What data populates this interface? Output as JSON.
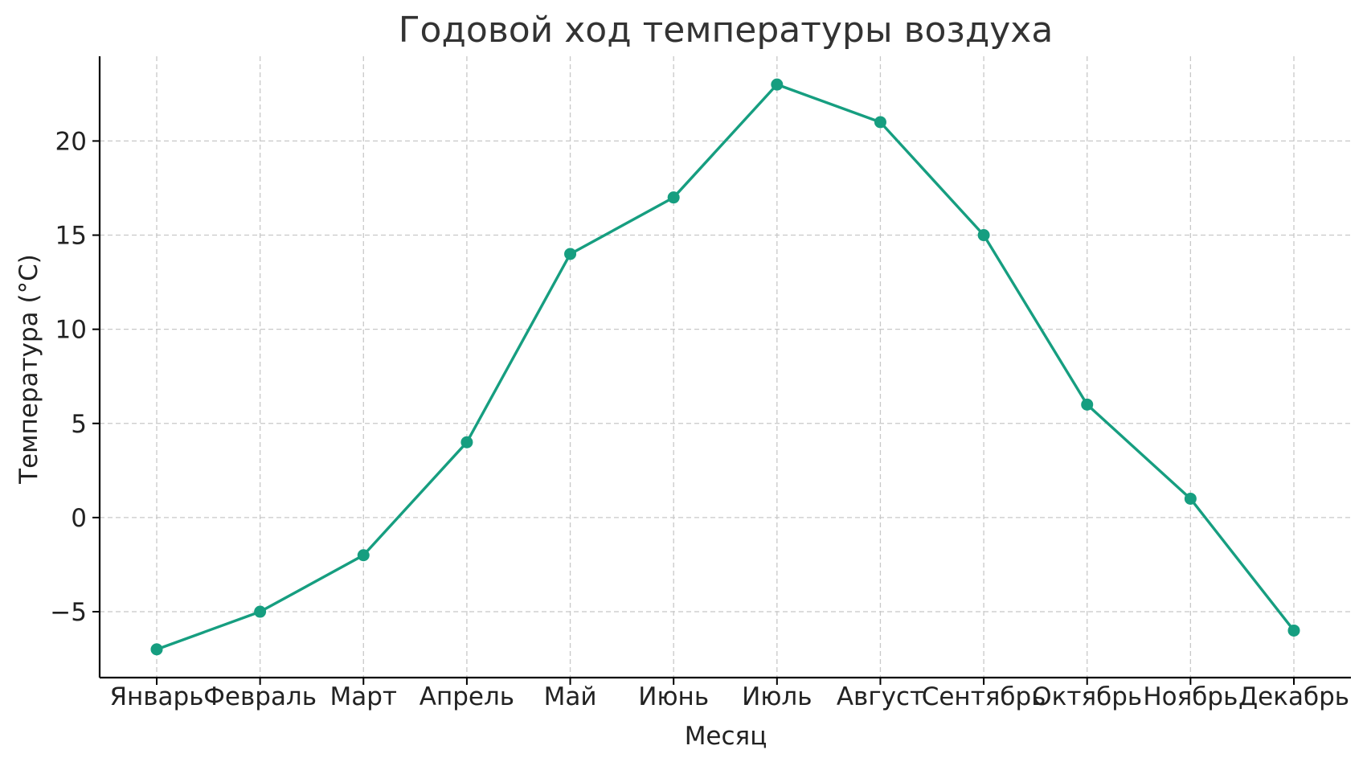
{
  "chart_data": {
    "type": "line",
    "title": "Годовой ход температуры воздуха",
    "xlabel": "Месяц",
    "ylabel": "Температура (°C)",
    "categories": [
      "Январь",
      "Февраль",
      "Март",
      "Апрель",
      "Май",
      "Июнь",
      "Июль",
      "Август",
      "Сентябрь",
      "Октябрь",
      "Ноябрь",
      "Декабрь"
    ],
    "series": [
      {
        "values": [
          -7,
          -5,
          -2,
          4,
          14,
          17,
          23,
          21,
          15,
          6,
          1,
          -6
        ],
        "color": "#169E80",
        "marker": "circle"
      }
    ],
    "ylim": [
      -8.5,
      24.5
    ],
    "yticks": [
      -5,
      0,
      5,
      10,
      15,
      20
    ],
    "ytick_labels": [
      "−5",
      "0",
      "5",
      "10",
      "15",
      "20"
    ],
    "grid": true,
    "legend": "none"
  }
}
